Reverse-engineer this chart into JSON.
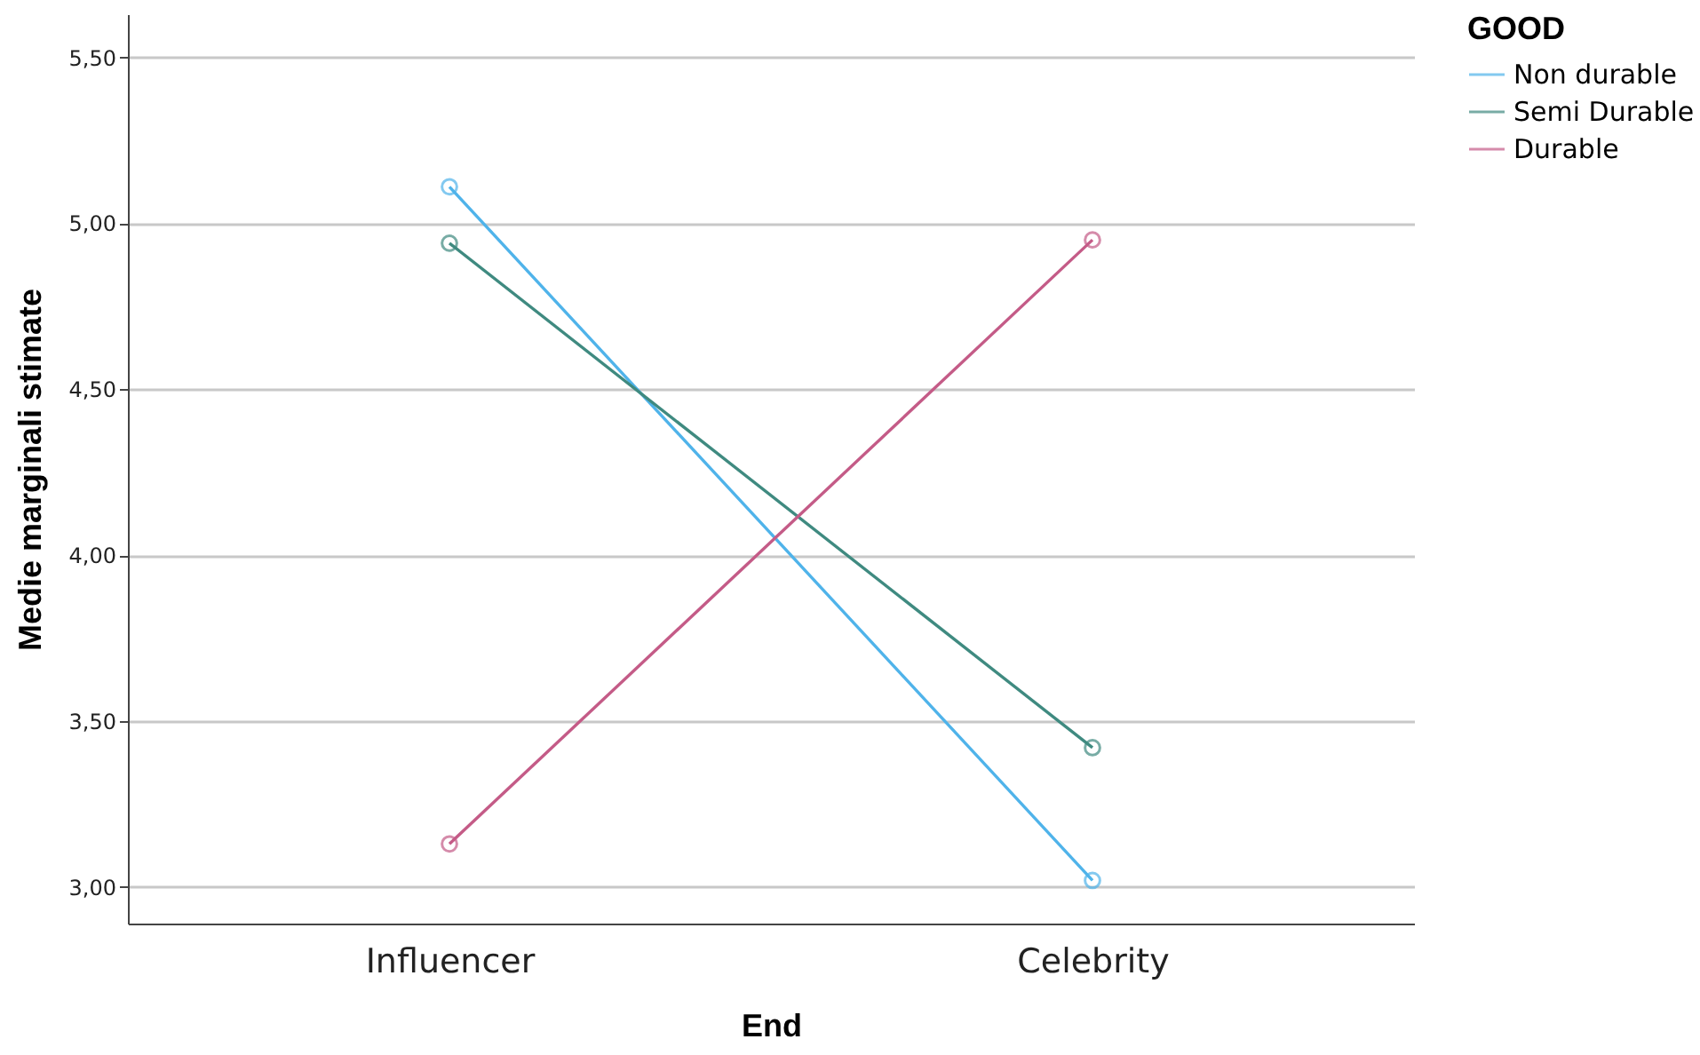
{
  "chart_data": {
    "type": "line",
    "xlabel": "End",
    "ylabel": "Medie marginali stimate",
    "legend_title": "GOOD",
    "categories": [
      "Influencer",
      "Celebrity"
    ],
    "series": [
      {
        "name": "Non durable",
        "color": "#4fb3ea",
        "values": [
          5.11,
          3.02
        ]
      },
      {
        "name": "Semi Durable",
        "color": "#3f8a80",
        "values": [
          4.94,
          3.42
        ]
      },
      {
        "name": "Durable",
        "color": "#c45b87",
        "values": [
          3.13,
          4.95
        ]
      }
    ],
    "ylim": [
      2.89,
      5.63
    ],
    "yticks": [
      {
        "value": 3,
        "label": "3,00"
      },
      {
        "value": 3.5,
        "label": "3,50"
      },
      {
        "value": 4,
        "label": "4,00"
      },
      {
        "value": 4.5,
        "label": "4,50"
      },
      {
        "value": 5,
        "label": "5,00"
      },
      {
        "value": 5.5,
        "label": "5,50"
      }
    ],
    "grid": "y",
    "legend": "top right",
    "marker": "circle",
    "line_style": "solid"
  }
}
